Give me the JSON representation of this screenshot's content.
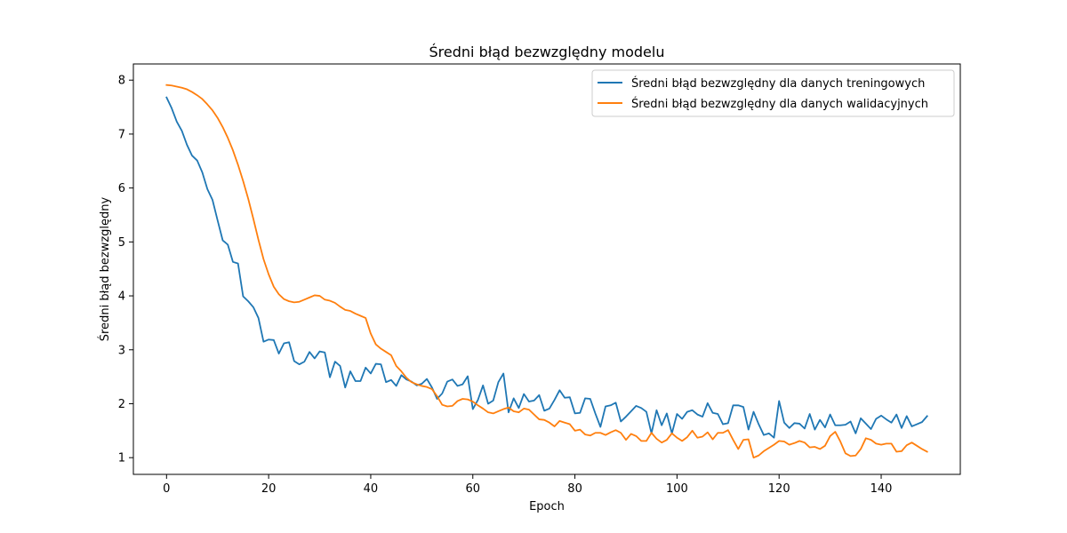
{
  "chart_data": {
    "type": "line",
    "title": "Średni błąd bezwzględny modelu",
    "xlabel": "Epoch",
    "ylabel": "Średni błąd bezwzględny",
    "xlim": [
      -6.5,
      155.5
    ],
    "ylim": [
      0.69,
      8.3
    ],
    "xticks": [
      0,
      20,
      40,
      60,
      80,
      100,
      120,
      140
    ],
    "yticks": [
      1,
      2,
      3,
      4,
      5,
      6,
      7,
      8
    ],
    "grid": false,
    "legend_position": "top-right",
    "series": [
      {
        "name": "Średni błąd bezwzględny dla danych treningowych",
        "color": "#1f77b4",
        "start_x": 0,
        "values": [
          7.68,
          7.48,
          7.23,
          7.06,
          6.8,
          6.6,
          6.51,
          6.29,
          5.98,
          5.78,
          5.4,
          5.03,
          4.95,
          4.63,
          4.6,
          3.99,
          3.9,
          3.79,
          3.59,
          3.15,
          3.19,
          3.18,
          2.93,
          3.12,
          3.14,
          2.79,
          2.73,
          2.78,
          2.96,
          2.84,
          2.97,
          2.95,
          2.49,
          2.78,
          2.7,
          2.3,
          2.6,
          2.42,
          2.42,
          2.67,
          2.56,
          2.74,
          2.73,
          2.4,
          2.44,
          2.33,
          2.53,
          2.45,
          2.41,
          2.34,
          2.37,
          2.46,
          2.3,
          2.09,
          2.19,
          2.41,
          2.45,
          2.33,
          2.36,
          2.51,
          1.9,
          2.07,
          2.34,
          2.0,
          2.06,
          2.4,
          2.56,
          1.84,
          2.1,
          1.92,
          2.18,
          2.04,
          2.06,
          2.16,
          1.87,
          1.91,
          2.07,
          2.25,
          2.11,
          2.12,
          1.82,
          1.83,
          2.1,
          2.09,
          1.82,
          1.57,
          1.95,
          1.97,
          2.02,
          1.67,
          1.76,
          1.86,
          1.96,
          1.92,
          1.85,
          1.45,
          1.88,
          1.6,
          1.82,
          1.45,
          1.81,
          1.72,
          1.85,
          1.88,
          1.8,
          1.76,
          2.01,
          1.83,
          1.81,
          1.62,
          1.64,
          1.97,
          1.97,
          1.94,
          1.52,
          1.85,
          1.62,
          1.42,
          1.45,
          1.37,
          2.05,
          1.65,
          1.55,
          1.64,
          1.63,
          1.54,
          1.81,
          1.52,
          1.7,
          1.56,
          1.8,
          1.6,
          1.6,
          1.61,
          1.67,
          1.45,
          1.73,
          1.63,
          1.53,
          1.72,
          1.78,
          1.71,
          1.65,
          1.8,
          1.55,
          1.77,
          1.58,
          1.62,
          1.66,
          1.77
        ]
      },
      {
        "name": "Średni błąd bezwzględny dla danych walidacyjnych",
        "color": "#ff7f0e",
        "start_x": 0,
        "values": [
          7.91,
          7.9,
          7.88,
          7.86,
          7.83,
          7.78,
          7.72,
          7.65,
          7.55,
          7.44,
          7.3,
          7.13,
          6.93,
          6.7,
          6.43,
          6.13,
          5.8,
          5.43,
          5.04,
          4.68,
          4.4,
          4.17,
          4.03,
          3.94,
          3.9,
          3.88,
          3.89,
          3.93,
          3.97,
          4.01,
          4.0,
          3.93,
          3.91,
          3.87,
          3.8,
          3.74,
          3.72,
          3.67,
          3.63,
          3.59,
          3.3,
          3.1,
          3.02,
          2.96,
          2.9,
          2.7,
          2.6,
          2.48,
          2.4,
          2.36,
          2.33,
          2.31,
          2.27,
          2.14,
          1.98,
          1.95,
          1.96,
          2.05,
          2.09,
          2.08,
          2.04,
          1.97,
          1.91,
          1.84,
          1.82,
          1.86,
          1.9,
          1.93,
          1.86,
          1.84,
          1.91,
          1.89,
          1.8,
          1.71,
          1.7,
          1.65,
          1.58,
          1.68,
          1.65,
          1.62,
          1.5,
          1.52,
          1.43,
          1.41,
          1.46,
          1.46,
          1.42,
          1.47,
          1.51,
          1.46,
          1.33,
          1.44,
          1.4,
          1.31,
          1.31,
          1.46,
          1.35,
          1.28,
          1.33,
          1.45,
          1.37,
          1.31,
          1.38,
          1.5,
          1.37,
          1.39,
          1.47,
          1.34,
          1.46,
          1.46,
          1.51,
          1.33,
          1.16,
          1.33,
          1.34,
          1.0,
          1.04,
          1.12,
          1.18,
          1.24,
          1.31,
          1.3,
          1.24,
          1.27,
          1.31,
          1.28,
          1.19,
          1.2,
          1.16,
          1.22,
          1.4,
          1.48,
          1.3,
          1.08,
          1.03,
          1.04,
          1.16,
          1.36,
          1.33,
          1.26,
          1.24,
          1.26,
          1.26,
          1.11,
          1.12,
          1.23,
          1.28,
          1.22,
          1.16,
          1.11
        ]
      }
    ]
  }
}
